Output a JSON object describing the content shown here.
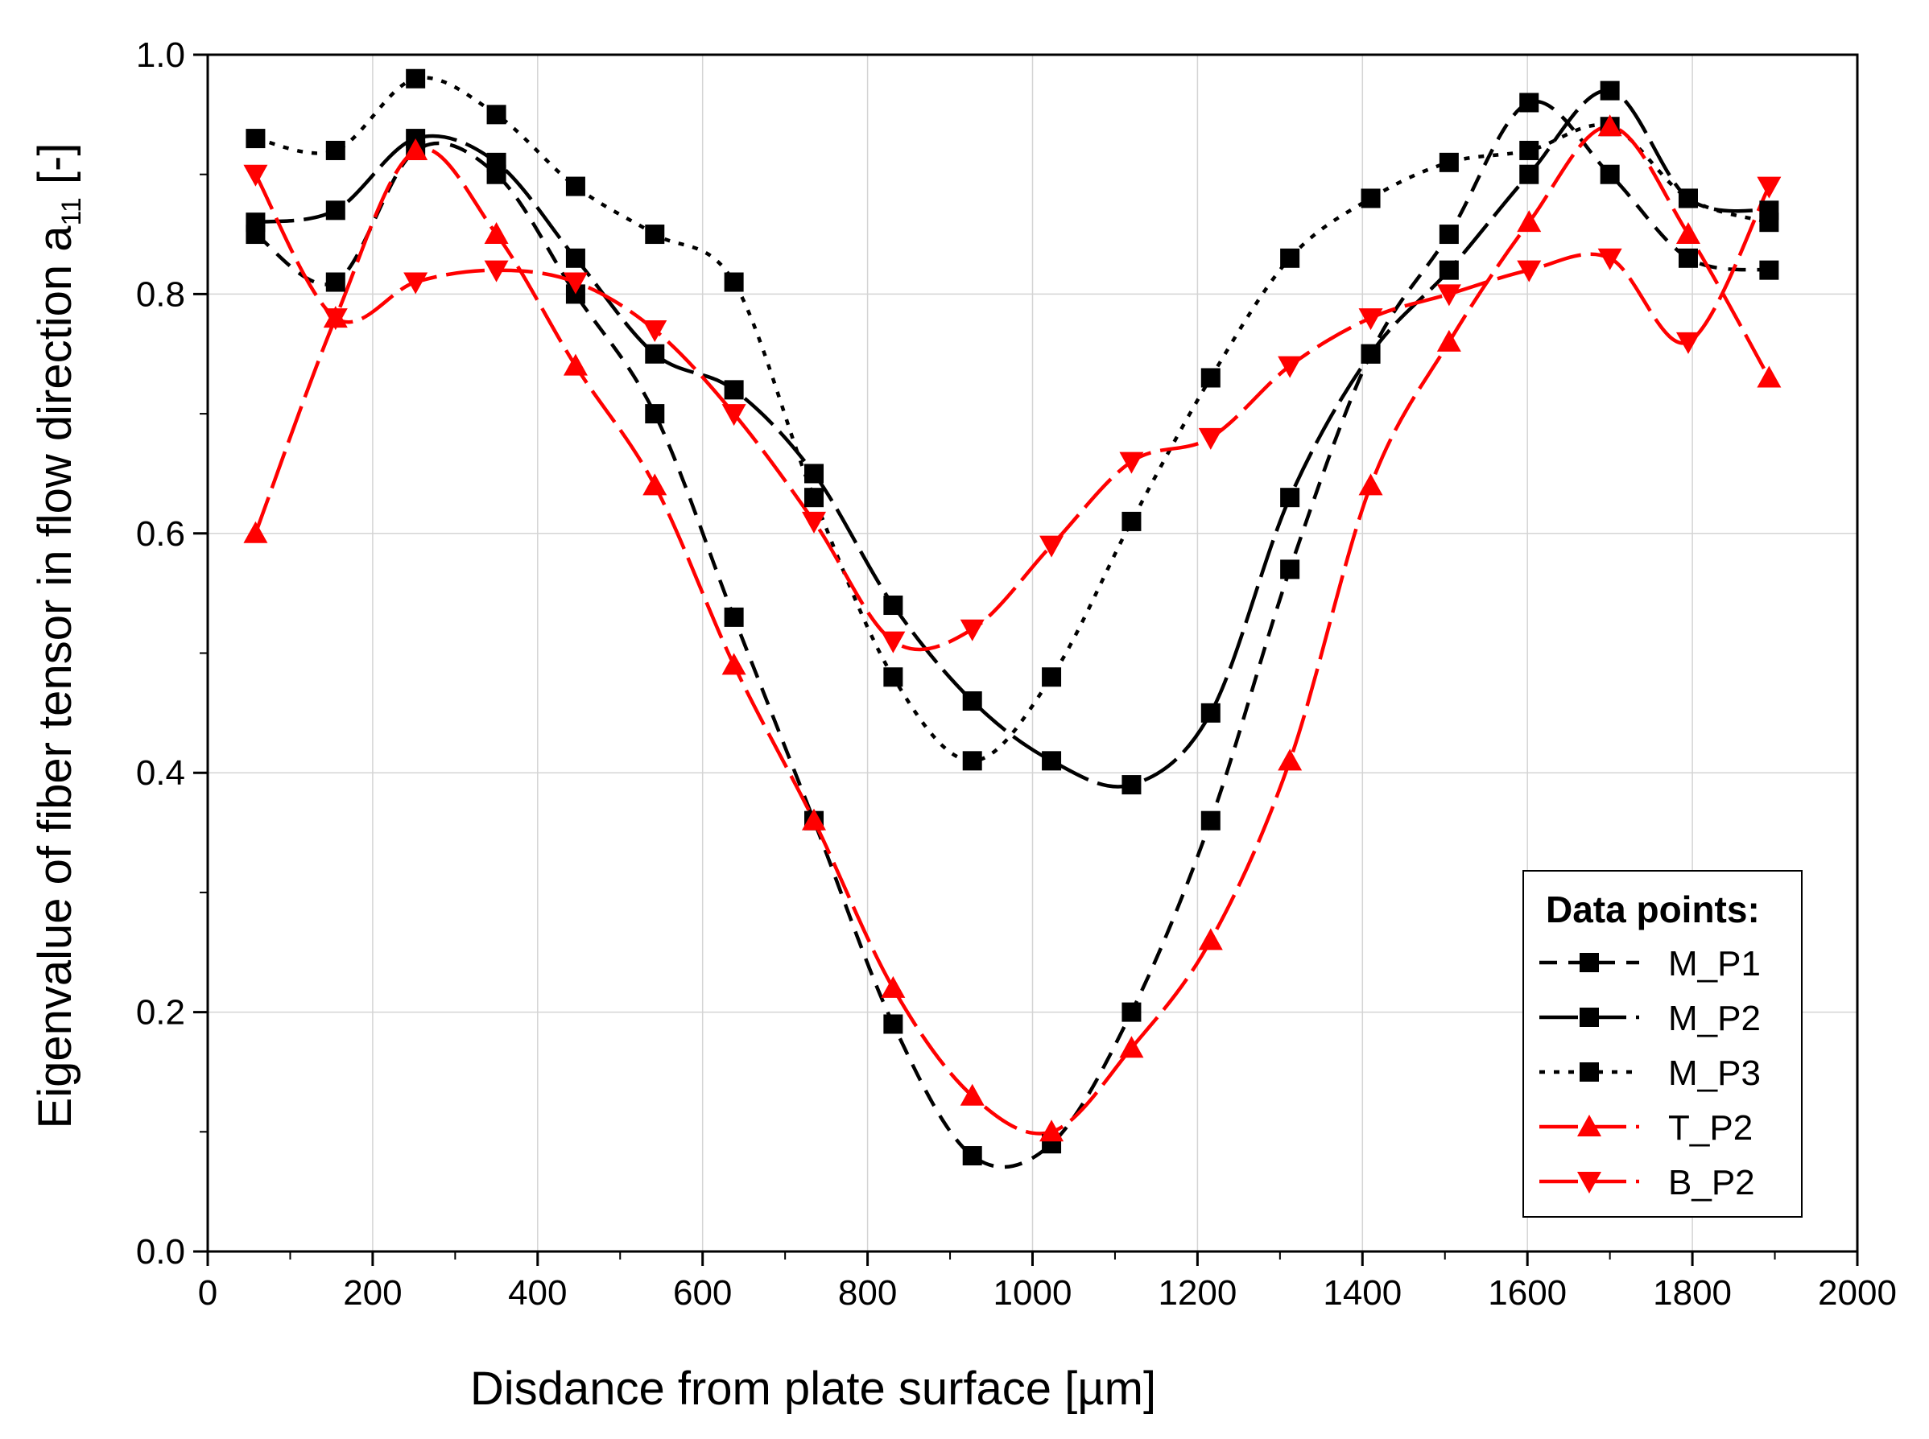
{
  "chart_data": {
    "type": "line",
    "title": "",
    "xlabel": "Disdance from plate surface [µm]",
    "ylabel_main": "Eigenvalue of fiber tensor in flow direction a",
    "ylabel_sub": "11",
    "ylabel_unit": " [-]",
    "xlim": [
      0,
      2000
    ],
    "ylim": [
      0.0,
      1.0
    ],
    "x_ticks": [
      0,
      200,
      400,
      600,
      800,
      1000,
      1200,
      1400,
      1600,
      1800,
      2000
    ],
    "y_ticks": [
      0.0,
      0.2,
      0.4,
      0.6,
      0.8,
      1.0
    ],
    "x_tick_labels": [
      "0",
      "200",
      "400",
      "600",
      "800",
      "1000",
      "1200",
      "1400",
      "1600",
      "1800",
      "2000"
    ],
    "y_tick_labels": [
      "0.0",
      "0.2",
      "0.4",
      "0.6",
      "0.8",
      "1.0"
    ],
    "grid": true,
    "legend_title": "Data points:",
    "legend_position": "bottom-right",
    "x": [
      58,
      155,
      252,
      350,
      446,
      542,
      638,
      735,
      831,
      927,
      1023,
      1120,
      1216,
      1312,
      1410,
      1505,
      1602,
      1700,
      1795,
      1893
    ],
    "series": [
      {
        "name": "M_P1",
        "color": "#000000",
        "dash": "dashed",
        "marker": "square",
        "values": [
          0.85,
          0.81,
          0.92,
          0.9,
          0.8,
          0.7,
          0.53,
          0.36,
          0.19,
          0.08,
          0.09,
          0.2,
          0.36,
          0.57,
          0.75,
          0.85,
          0.96,
          0.9,
          0.83,
          0.82
        ]
      },
      {
        "name": "M_P2",
        "color": "#000000",
        "dash": "long-dash",
        "marker": "square",
        "values": [
          0.86,
          0.87,
          0.93,
          0.91,
          0.83,
          0.75,
          0.72,
          0.65,
          0.54,
          0.46,
          0.41,
          0.39,
          0.45,
          0.63,
          0.75,
          0.82,
          0.9,
          0.97,
          0.88,
          0.87
        ]
      },
      {
        "name": "M_P3",
        "color": "#000000",
        "dash": "dotted",
        "marker": "square",
        "values": [
          0.93,
          0.92,
          0.98,
          0.95,
          0.89,
          0.85,
          0.81,
          0.63,
          0.48,
          0.41,
          0.48,
          0.61,
          0.73,
          0.83,
          0.88,
          0.91,
          0.92,
          0.94,
          0.88,
          0.86
        ]
      },
      {
        "name": "T_P2",
        "color": "#ff0000",
        "dash": "long-dash",
        "marker": "triangle-up",
        "values": [
          0.6,
          0.78,
          0.92,
          0.85,
          0.74,
          0.64,
          0.49,
          0.36,
          0.22,
          0.13,
          0.1,
          0.17,
          0.26,
          0.41,
          0.64,
          0.76,
          0.86,
          0.94,
          0.85,
          0.73
        ]
      },
      {
        "name": "B_P2",
        "color": "#ff0000",
        "dash": "long-dash",
        "marker": "triangle-down",
        "values": [
          0.9,
          0.78,
          0.81,
          0.82,
          0.81,
          0.77,
          0.7,
          0.61,
          0.51,
          0.52,
          0.59,
          0.66,
          0.68,
          0.74,
          0.78,
          0.8,
          0.82,
          0.83,
          0.76,
          0.89
        ]
      }
    ]
  }
}
